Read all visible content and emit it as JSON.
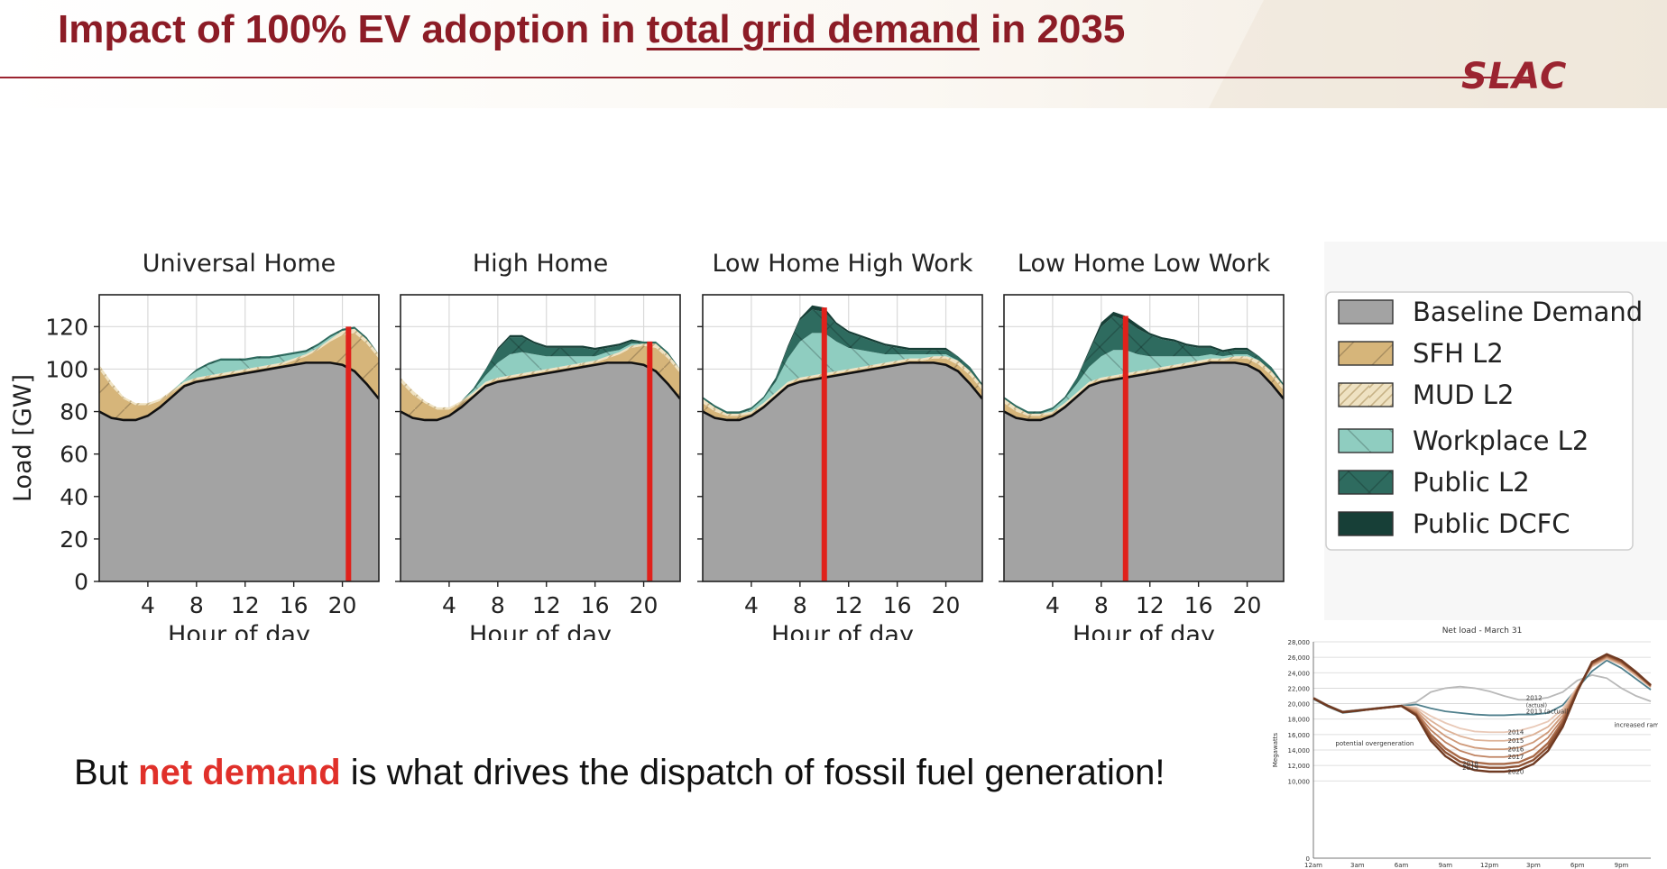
{
  "slide": {
    "title_pre": "Impact of 100% EV adoption in ",
    "title_underlined": "total grid demand",
    "title_post": " in 2035",
    "logo": "SLAC",
    "subtitle_pre": "But ",
    "subtitle_highlight": "net demand",
    "subtitle_post": " is what drives the dispatch of fossil fuel generation!"
  },
  "chart_data": [
    {
      "type": "area",
      "stacked": true,
      "ylabel": "Load [GW]",
      "xlabel": "Hour of day",
      "ylim": [
        0,
        135
      ],
      "xlim": [
        0,
        23
      ],
      "yticks": [
        0,
        20,
        40,
        60,
        80,
        100,
        120
      ],
      "xticks": [
        4,
        8,
        12,
        16,
        20
      ],
      "grid": true,
      "legend_position": "right",
      "x": [
        0,
        1,
        2,
        3,
        4,
        5,
        6,
        7,
        8,
        9,
        10,
        11,
        12,
        13,
        14,
        15,
        16,
        17,
        18,
        19,
        20,
        21,
        22,
        23
      ],
      "baseline": [
        80,
        77,
        76,
        76,
        78,
        82,
        87,
        92,
        94,
        95,
        96,
        97,
        98,
        99,
        100,
        101,
        102,
        103,
        103,
        103,
        102,
        99,
        93,
        86
      ],
      "colors": {
        "Baseline Demand": "#a3a3a3",
        "SFH L2": "#d6b57a",
        "MUD L2": "#efe2c2",
        "Workplace L2": "#8fcdc0",
        "Public L2": "#2e6b5f",
        "Public DCFC": "#173f37",
        "peak_marker": "#e0211b"
      },
      "legend": [
        "Baseline Demand",
        "SFH L2",
        "MUD L2",
        "Workplace L2",
        "Public L2",
        "Public DCFC"
      ],
      "panels": [
        {
          "title": "Universal Home",
          "peak_hour": 20.5,
          "series": [
            {
              "name": "SFH L2",
              "values": [
                20,
                15,
                10,
                7,
                5,
                3,
                2,
                1,
                1,
                1,
                1,
                1,
                1,
                1,
                1,
                1,
                2,
                3,
                6,
                10,
                14,
                18,
                19,
                19
              ]
            },
            {
              "name": "MUD L2",
              "values": [
                2,
                2,
                1,
                1,
                1,
                1,
                1,
                1,
                1,
                1,
                1,
                1,
                1,
                1,
                1,
                1,
                1,
                1,
                1,
                1,
                2,
                2,
                2,
                2
              ]
            },
            {
              "name": "Workplace L2",
              "values": [
                0,
                0,
                0,
                0,
                0,
                0,
                0,
                1,
                3,
                5,
                6,
                5,
                4,
                4,
                3,
                3,
                2,
                1,
                1,
                1,
                0,
                0,
                0,
                0
              ]
            },
            {
              "name": "Public L2",
              "values": [
                0,
                0,
                0,
                0,
                0,
                0,
                0,
                0,
                1,
                1,
                1,
                1,
                1,
                1,
                1,
                1,
                1,
                1,
                1,
                1,
                1,
                1,
                1,
                0
              ]
            },
            {
              "name": "Public DCFC",
              "values": [
                0,
                0,
                0,
                0,
                0,
                0,
                0,
                0,
                0,
                0,
                0,
                0,
                0,
                0,
                0,
                0,
                0,
                0,
                0,
                0,
                0,
                0,
                0,
                0
              ]
            }
          ]
        },
        {
          "title": "High Home",
          "peak_hour": 20.5,
          "series": [
            {
              "name": "SFH L2",
              "values": [
                14,
                11,
                8,
                5,
                3,
                2,
                1,
                1,
                1,
                1,
                1,
                1,
                1,
                1,
                1,
                1,
                1,
                2,
                4,
                7,
                9,
                11,
                12,
                12
              ]
            },
            {
              "name": "MUD L2",
              "values": [
                2,
                2,
                1,
                1,
                1,
                1,
                1,
                1,
                1,
                1,
                1,
                1,
                1,
                1,
                1,
                1,
                1,
                1,
                1,
                1,
                1,
                2,
                2,
                2
              ]
            },
            {
              "name": "Workplace L2",
              "values": [
                0,
                0,
                0,
                0,
                0,
                0,
                1,
                3,
                7,
                10,
                10,
                8,
                6,
                5,
                4,
                3,
                2,
                2,
                1,
                1,
                0,
                0,
                0,
                0
              ]
            },
            {
              "name": "Public L2",
              "values": [
                0,
                0,
                0,
                0,
                0,
                0,
                1,
                3,
                6,
                8,
                7,
                5,
                4,
                4,
                4,
                4,
                3,
                2,
                2,
                1,
                1,
                1,
                1,
                0
              ]
            },
            {
              "name": "Public DCFC",
              "values": [
                0,
                0,
                0,
                0,
                0,
                0,
                0,
                0,
                1,
                1,
                1,
                1,
                1,
                1,
                1,
                1,
                1,
                1,
                1,
                1,
                0,
                0,
                0,
                0
              ]
            }
          ]
        },
        {
          "title": "Low Home High Work",
          "peak_hour": 10,
          "series": [
            {
              "name": "SFH L2",
              "values": [
                4,
                3,
                2,
                2,
                1,
                1,
                1,
                1,
                1,
                1,
                1,
                1,
                1,
                1,
                1,
                1,
                1,
                1,
                1,
                2,
                3,
                3,
                4,
                4
              ]
            },
            {
              "name": "MUD L2",
              "values": [
                2,
                2,
                1,
                1,
                1,
                1,
                1,
                1,
                1,
                1,
                1,
                1,
                1,
                1,
                1,
                1,
                1,
                1,
                1,
                1,
                1,
                2,
                2,
                2
              ]
            },
            {
              "name": "Workplace L2",
              "values": [
                0,
                0,
                0,
                0,
                1,
                2,
                5,
                11,
                17,
                20,
                19,
                14,
                10,
                8,
                6,
                4,
                3,
                2,
                2,
                1,
                1,
                0,
                0,
                0
              ]
            },
            {
              "name": "Public L2",
              "values": [
                1,
                1,
                1,
                1,
                1,
                1,
                2,
                5,
                10,
                11,
                10,
                8,
                7,
                6,
                5,
                4,
                3,
                2,
                2,
                2,
                2,
                2,
                2,
                1
              ]
            },
            {
              "name": "Public DCFC",
              "values": [
                0,
                0,
                0,
                0,
                0,
                0,
                0,
                1,
                1,
                2,
                2,
                1,
                1,
                1,
                1,
                1,
                1,
                1,
                1,
                1,
                1,
                0,
                0,
                0
              ]
            }
          ]
        },
        {
          "title": "Low Home Low Work",
          "peak_hour": 10,
          "series": [
            {
              "name": "SFH L2",
              "values": [
                4,
                3,
                2,
                2,
                1,
                1,
                1,
                1,
                1,
                1,
                1,
                1,
                1,
                1,
                1,
                1,
                1,
                1,
                1,
                2,
                3,
                3,
                4,
                4
              ]
            },
            {
              "name": "MUD L2",
              "values": [
                2,
                2,
                1,
                1,
                1,
                1,
                1,
                1,
                1,
                1,
                1,
                1,
                1,
                1,
                1,
                1,
                1,
                1,
                1,
                1,
                1,
                2,
                2,
                2
              ]
            },
            {
              "name": "Workplace L2",
              "values": [
                0,
                0,
                0,
                0,
                1,
                2,
                4,
                7,
                10,
                12,
                11,
                8,
                6,
                5,
                4,
                3,
                2,
                2,
                1,
                1,
                1,
                0,
                0,
                0
              ]
            },
            {
              "name": "Public L2",
              "values": [
                1,
                1,
                1,
                1,
                1,
                1,
                3,
                7,
                14,
                16,
                14,
                12,
                10,
                8,
                7,
                5,
                4,
                3,
                2,
                2,
                2,
                2,
                2,
                1
              ]
            },
            {
              "name": "Public DCFC",
              "values": [
                0,
                0,
                0,
                0,
                0,
                0,
                0,
                1,
                2,
                2,
                2,
                2,
                1,
                1,
                1,
                1,
                1,
                1,
                1,
                1,
                1,
                0,
                0,
                0
              ]
            }
          ]
        }
      ]
    },
    {
      "type": "line",
      "title": "Net load - March 31",
      "ylabel": "Megawatts",
      "ylim": [
        0,
        28000
      ],
      "yticks": [
        0,
        10000,
        12000,
        14000,
        16000,
        18000,
        20000,
        22000,
        24000,
        26000,
        28000
      ],
      "ytick_labels": [
        "0",
        "10,000",
        "12,000",
        "14,000",
        "16,000",
        "18,000",
        "20,000",
        "22,000",
        "24,000",
        "26,000",
        "28,000"
      ],
      "xtick_labels": [
        "12am",
        "3am",
        "6am",
        "9am",
        "12pm",
        "3pm",
        "6pm",
        "9pm"
      ],
      "x": [
        0,
        1,
        2,
        3,
        4,
        5,
        6,
        7,
        8,
        9,
        10,
        11,
        12,
        13,
        14,
        15,
        16,
        17,
        18,
        19,
        20,
        21,
        22,
        23
      ],
      "annotations": [
        {
          "text": "2012",
          "sub": "(actual)",
          "x": 14.5,
          "y": 20500
        },
        {
          "text": "2013 (actual)",
          "x": 14.5,
          "y": 18700
        },
        {
          "text": "increased ramp",
          "x": 20.5,
          "y": 17000
        },
        {
          "text": "potential overgeneration",
          "x": 1.5,
          "y": 14600
        }
      ],
      "series": [
        {
          "name": "2012",
          "values": [
            20800,
            19800,
            19000,
            19200,
            19400,
            19600,
            19800,
            20200,
            21500,
            22000,
            22200,
            22000,
            21600,
            21000,
            20500,
            20500,
            20800,
            21500,
            23000,
            23700,
            23300,
            22000,
            21000,
            20300
          ]
        },
        {
          "name": "2013",
          "values": [
            20600,
            19600,
            18800,
            19000,
            19300,
            19500,
            19700,
            19900,
            19400,
            19000,
            18800,
            18600,
            18500,
            18500,
            18600,
            18600,
            18800,
            19800,
            22000,
            24200,
            25600,
            24600,
            23200,
            21800
          ]
        },
        {
          "name": "2014",
          "values": [
            20700,
            19700,
            18900,
            19100,
            19300,
            19500,
            19700,
            19500,
            18400,
            17500,
            16800,
            16400,
            16300,
            16300,
            16500,
            17000,
            17700,
            19300,
            22200,
            24800,
            25800,
            25000,
            23600,
            22100
          ]
        },
        {
          "name": "2015",
          "values": [
            20700,
            19700,
            18900,
            19100,
            19300,
            19500,
            19700,
            19300,
            17800,
            16600,
            15800,
            15300,
            15200,
            15200,
            15400,
            16000,
            17000,
            18900,
            22100,
            24900,
            25900,
            25100,
            23700,
            22200
          ]
        },
        {
          "name": "2016",
          "values": [
            20700,
            19700,
            18900,
            19100,
            19300,
            19500,
            19700,
            19100,
            17200,
            15800,
            14800,
            14300,
            14100,
            14100,
            14300,
            15000,
            16300,
            18500,
            22000,
            25000,
            26000,
            25200,
            23800,
            22200
          ]
        },
        {
          "name": "2017",
          "values": [
            20700,
            19700,
            18900,
            19100,
            19300,
            19500,
            19700,
            18900,
            16600,
            15000,
            13900,
            13300,
            13100,
            13100,
            13300,
            14100,
            15600,
            18100,
            21900,
            25100,
            26100,
            25300,
            23900,
            22300
          ]
        },
        {
          "name": "2018",
          "values": [
            20700,
            19700,
            18900,
            19100,
            19300,
            19500,
            19700,
            18700,
            16000,
            14200,
            13000,
            12400,
            12200,
            12200,
            12400,
            13200,
            14900,
            17700,
            21800,
            25200,
            26200,
            25400,
            24000,
            22300
          ]
        },
        {
          "name": "2019",
          "values": [
            20700,
            19700,
            18900,
            19100,
            19300,
            19500,
            19700,
            18600,
            15600,
            13700,
            12500,
            11900,
            11700,
            11700,
            11900,
            12700,
            14400,
            17400,
            21700,
            25300,
            26300,
            25500,
            24000,
            22400
          ]
        },
        {
          "name": "2020",
          "values": [
            20700,
            19700,
            18900,
            19100,
            19300,
            19500,
            19700,
            18500,
            15200,
            13200,
            12000,
            11400,
            11200,
            11200,
            11400,
            12200,
            13900,
            17000,
            21600,
            25400,
            26400,
            25600,
            24100,
            22400
          ]
        }
      ]
    }
  ]
}
